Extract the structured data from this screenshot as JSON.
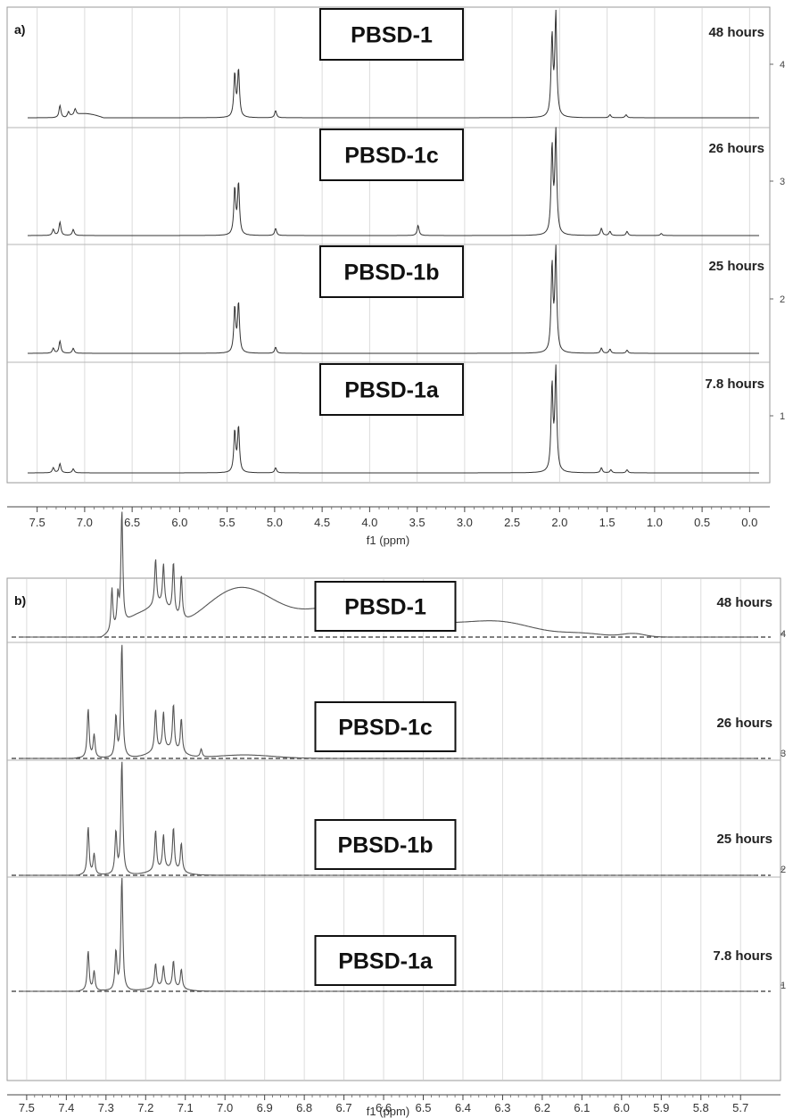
{
  "chart_data": [
    {
      "panel_label": "a)",
      "type": "line",
      "xlabel": "f1 (ppm)",
      "xlim": [
        7.6,
        -0.1
      ],
      "x_reversed": true,
      "grid": true,
      "ticks": [
        "7.5",
        "7.0",
        "6.5",
        "6.0",
        "5.5",
        "5.0",
        "4.5",
        "4.0",
        "3.5",
        "3.0",
        "2.5",
        "2.0",
        "1.5",
        "1.0",
        "0.5",
        "0.0"
      ],
      "right_scale": [
        "4",
        "3",
        "2",
        "1"
      ],
      "series": [
        {
          "name": "PBSD-1",
          "time": "48 hours",
          "peaks": [
            [
              7.26,
              0.12
            ],
            [
              7.17,
              0.05
            ],
            [
              7.1,
              0.06
            ],
            [
              5.42,
              0.42
            ],
            [
              5.38,
              0.46
            ],
            [
              4.99,
              0.07
            ],
            [
              2.08,
              0.78
            ],
            [
              2.04,
              1.0
            ],
            [
              1.47,
              0.03
            ],
            [
              1.3,
              0.03
            ]
          ],
          "baseline_hump": [
            7.2,
            6.8,
            0.04
          ]
        },
        {
          "name": "PBSD-1c",
          "time": "26 hours",
          "peaks": [
            [
              7.33,
              0.06
            ],
            [
              7.26,
              0.13
            ],
            [
              7.12,
              0.06
            ],
            [
              5.42,
              0.45
            ],
            [
              5.38,
              0.5
            ],
            [
              4.99,
              0.07
            ],
            [
              3.49,
              0.1
            ],
            [
              2.08,
              0.85
            ],
            [
              2.04,
              1.0
            ],
            [
              1.56,
              0.07
            ],
            [
              1.47,
              0.04
            ],
            [
              1.29,
              0.04
            ],
            [
              0.93,
              0.02
            ]
          ]
        },
        {
          "name": "PBSD-1b",
          "time": "25 hours",
          "peaks": [
            [
              7.33,
              0.05
            ],
            [
              7.26,
              0.12
            ],
            [
              7.12,
              0.05
            ],
            [
              5.42,
              0.44
            ],
            [
              5.38,
              0.48
            ],
            [
              4.99,
              0.06
            ],
            [
              2.08,
              0.85
            ],
            [
              2.04,
              1.0
            ],
            [
              1.56,
              0.05
            ],
            [
              1.47,
              0.04
            ],
            [
              1.29,
              0.03
            ]
          ]
        },
        {
          "name": "PBSD-1a",
          "time": "7.8 hours",
          "peaks": [
            [
              7.33,
              0.05
            ],
            [
              7.26,
              0.09
            ],
            [
              7.12,
              0.04
            ],
            [
              5.42,
              0.4
            ],
            [
              5.38,
              0.44
            ],
            [
              4.99,
              0.05
            ],
            [
              2.08,
              0.84
            ],
            [
              2.04,
              1.0
            ],
            [
              1.56,
              0.05
            ],
            [
              1.46,
              0.03
            ],
            [
              1.29,
              0.03
            ]
          ]
        }
      ]
    },
    {
      "panel_label": "b)",
      "type": "line",
      "xlabel": "f1 (ppm)",
      "xlim": [
        7.52,
        5.66
      ],
      "x_reversed": true,
      "grid": true,
      "ticks": [
        "7.5",
        "7.4",
        "7.3",
        "7.2",
        "7.1",
        "7.0",
        "6.9",
        "6.8",
        "6.7",
        "6.6",
        "6.5",
        "6.4",
        "6.3",
        "6.2",
        "6.1",
        "6.0",
        "5.9",
        "5.8",
        "5.7"
      ],
      "right_scale": [
        "4",
        "3",
        "2",
        "1"
      ],
      "series": [
        {
          "name": "PBSD-1",
          "time": "48 hours",
          "peaks": [
            [
              7.285,
              0.38
            ],
            [
              7.27,
              0.28
            ],
            [
              7.26,
              1.0
            ],
            [
              7.175,
              0.4
            ],
            [
              7.155,
              0.36
            ],
            [
              7.13,
              0.45
            ],
            [
              7.11,
              0.38
            ]
          ],
          "broad": [
            [
              7.22,
              0.17,
              0.05
            ],
            [
              7.16,
              0.2,
              0.04
            ],
            [
              6.96,
              0.43,
              0.13
            ],
            [
              6.72,
              0.22,
              0.12
            ],
            [
              6.52,
              0.12,
              0.18
            ],
            [
              6.3,
              0.11,
              0.12
            ],
            [
              6.1,
              0.03,
              0.08
            ],
            [
              5.97,
              0.03,
              0.04
            ]
          ],
          "start": 7.3
        },
        {
          "name": "PBSD-1c",
          "time": "26 hours",
          "peaks": [
            [
              7.345,
              0.43
            ],
            [
              7.33,
              0.2
            ],
            [
              7.275,
              0.36
            ],
            [
              7.26,
              1.0
            ],
            [
              7.175,
              0.36
            ],
            [
              7.155,
              0.32
            ],
            [
              7.13,
              0.4
            ],
            [
              7.11,
              0.3
            ],
            [
              7.06,
              0.07
            ]
          ],
          "broad": [
            [
              7.15,
              0.08,
              0.05
            ],
            [
              6.95,
              0.03,
              0.1
            ]
          ],
          "start": 7.37
        },
        {
          "name": "PBSD-1b",
          "time": "25 hours",
          "peaks": [
            [
              7.345,
              0.42
            ],
            [
              7.33,
              0.18
            ],
            [
              7.275,
              0.37
            ],
            [
              7.26,
              1.0
            ],
            [
              7.175,
              0.35
            ],
            [
              7.155,
              0.3
            ],
            [
              7.13,
              0.37
            ],
            [
              7.11,
              0.25
            ]
          ],
          "broad": [
            [
              7.15,
              0.05,
              0.05
            ]
          ],
          "start": 7.36
        },
        {
          "name": "PBSD-1a",
          "time": "7.8 hours",
          "peaks": [
            [
              7.345,
              0.35
            ],
            [
              7.33,
              0.17
            ],
            [
              7.275,
              0.34
            ],
            [
              7.26,
              1.0
            ],
            [
              7.175,
              0.21
            ],
            [
              7.155,
              0.18
            ],
            [
              7.13,
              0.23
            ],
            [
              7.11,
              0.17
            ]
          ],
          "broad": [
            [
              7.15,
              0.04,
              0.05
            ]
          ],
          "start": 7.36
        }
      ]
    }
  ]
}
